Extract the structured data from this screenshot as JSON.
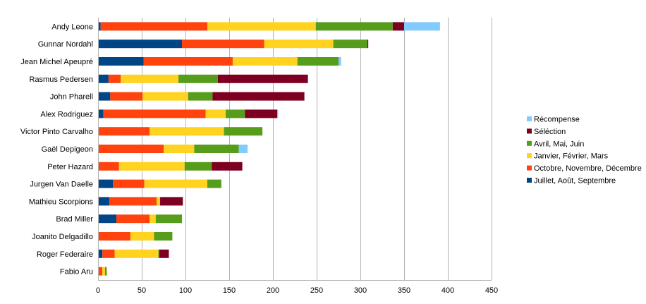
{
  "chart_data": {
    "type": "bar",
    "orientation": "horizontal",
    "stacked": true,
    "title": "",
    "xlabel": "",
    "ylabel": "",
    "xlim": [
      0,
      450
    ],
    "xticks": [
      0,
      50,
      100,
      150,
      200,
      250,
      300,
      350,
      400,
      450
    ],
    "grid": "vertical",
    "legend_position": "right",
    "categories": [
      "Andy Leone",
      "Gunnar Nordahl",
      "Jean Michel Apeupré",
      "Rasmus Pedersen",
      "John Pharell",
      "Alex Rodriguez",
      "Victor Pinto Carvalho",
      "Gaël Depigeon",
      "Peter Hazard",
      "Jurgen Van Daelle",
      "Mathieu Scorpions",
      "Brad Miller",
      "Joanito Delgadillo",
      "Roger Federaire",
      "Fabio Aru"
    ],
    "series": [
      {
        "name": "Juillet, Août, Septembre",
        "color": "#004586",
        "values": [
          3,
          96,
          52,
          12,
          14,
          6,
          1,
          0,
          0,
          17,
          13,
          21,
          0,
          5,
          0
        ]
      },
      {
        "name": "Octobre, Novembre, Décembre",
        "color": "#ff420e",
        "values": [
          122,
          94,
          102,
          14,
          37,
          117,
          58,
          75,
          24,
          36,
          54,
          38,
          37,
          14,
          5
        ]
      },
      {
        "name": "Janvier, Février, Mars",
        "color": "#ffd320",
        "values": [
          124,
          79,
          74,
          66,
          52,
          23,
          85,
          35,
          75,
          72,
          4,
          7,
          27,
          50,
          3
        ]
      },
      {
        "name": "Avril, Mai, Juin",
        "color": "#579d1c",
        "values": [
          88,
          39,
          47,
          45,
          28,
          22,
          44,
          51,
          31,
          16,
          0,
          30,
          21,
          1,
          2
        ]
      },
      {
        "name": "Séléction",
        "color": "#7e0021",
        "values": [
          13,
          1,
          0,
          103,
          105,
          37,
          0,
          0,
          35,
          0,
          26,
          0,
          0,
          11,
          0
        ]
      },
      {
        "name": "Récompense",
        "color": "#83caff",
        "values": [
          41,
          0,
          3,
          0,
          0,
          1,
          0,
          10,
          0,
          0,
          0,
          0,
          0,
          0,
          0
        ]
      }
    ],
    "legend_order": [
      "Récompense",
      "Séléction",
      "Avril, Mai, Juin",
      "Janvier, Février, Mars",
      "Octobre, Novembre, Décembre",
      "Juillet, Août, Septembre"
    ]
  }
}
